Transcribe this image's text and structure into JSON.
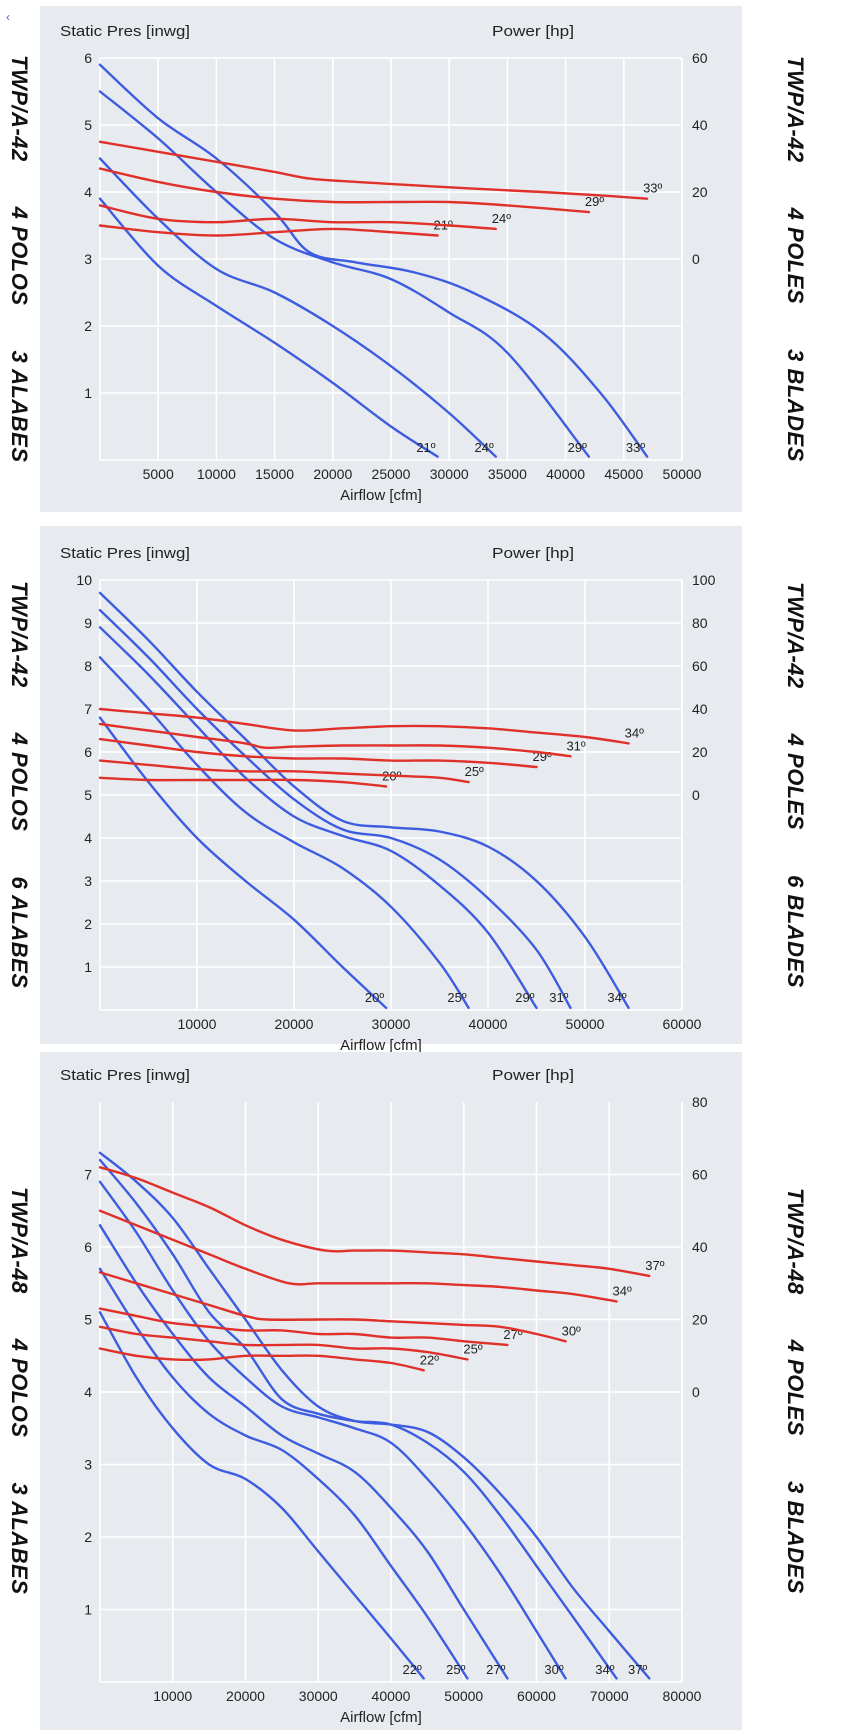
{
  "colors": {
    "panel_bg": "#e7ebef",
    "grid": "#ffffff",
    "pressure_curve": "#3d5ce0",
    "power_curve": "#e0302a",
    "text": "#222222"
  },
  "corner_mark": "‹",
  "chart_data": [
    {
      "type": "line",
      "left_label": "TWP/A-42   4 POLOS   3 ALABES",
      "right_label": "TWP/A-42   4 POLES   3 BLADES",
      "ylabel_left": "Static Pres [inwg]",
      "ylabel_right": "Power [hp]",
      "xlabel": "Airflow [cfm]",
      "xlim": [
        0,
        50000
      ],
      "xticks": [
        5000,
        10000,
        15000,
        20000,
        25000,
        30000,
        35000,
        40000,
        45000,
        50000
      ],
      "xtick_labels": [
        "5000",
        "10000",
        "15000",
        "20000",
        "25000",
        "30000",
        "35000",
        "40000",
        "45000",
        "50000"
      ],
      "ylim": [
        0,
        6
      ],
      "yticks": [
        1,
        2,
        3,
        4,
        5,
        6
      ],
      "ytick_labels": [
        "1",
        "2",
        "3",
        "4",
        "5",
        "6"
      ],
      "power_axis": {
        "ticks": [
          0,
          20,
          40,
          60
        ],
        "labels": [
          "0",
          "20",
          "40",
          "60"
        ],
        "ylim": [
          -60,
          60
        ]
      },
      "pressure_series": [
        {
          "label": "21º",
          "x": [
            0,
            5000,
            10000,
            15000,
            20000,
            25000,
            29000
          ],
          "y": [
            3.9,
            2.9,
            2.3,
            1.75,
            1.15,
            0.5,
            0.05
          ]
        },
        {
          "label": "24º",
          "x": [
            0,
            5000,
            10000,
            15000,
            20000,
            25000,
            30000,
            34000
          ],
          "y": [
            4.5,
            3.6,
            2.85,
            2.5,
            2.0,
            1.4,
            0.7,
            0.05
          ]
        },
        {
          "label": "29º",
          "x": [
            0,
            5000,
            10000,
            15000,
            20000,
            25000,
            30000,
            35000,
            42000
          ],
          "y": [
            5.5,
            4.8,
            4.0,
            3.3,
            2.95,
            2.7,
            2.2,
            1.6,
            0.05
          ]
        },
        {
          "label": "33º",
          "x": [
            0,
            5000,
            10000,
            15000,
            18000,
            22000,
            27000,
            32000,
            38000,
            43000,
            47000
          ],
          "y": [
            5.9,
            5.1,
            4.5,
            3.7,
            3.1,
            2.95,
            2.8,
            2.5,
            1.9,
            1.0,
            0.05
          ]
        }
      ],
      "power_series": [
        {
          "label": "21º",
          "x": [
            0,
            5000,
            10000,
            15000,
            20000,
            25000,
            29000
          ],
          "y": [
            10,
            8,
            7,
            8,
            9,
            8,
            7
          ]
        },
        {
          "label": "24º",
          "x": [
            0,
            5000,
            10000,
            15000,
            20000,
            25000,
            30000,
            34000
          ],
          "y": [
            16,
            12,
            11,
            12,
            11,
            11,
            10,
            9
          ]
        },
        {
          "label": "29º",
          "x": [
            0,
            5000,
            10000,
            15000,
            20000,
            25000,
            30000,
            35000,
            42000
          ],
          "y": [
            27,
            23,
            20,
            18,
            17,
            17,
            17,
            16,
            14
          ]
        },
        {
          "label": "33º",
          "x": [
            0,
            5000,
            10000,
            15000,
            18000,
            22000,
            27000,
            32000,
            38000,
            43000,
            47000
          ],
          "y": [
            35,
            32,
            29,
            26,
            24,
            23,
            22,
            21,
            20,
            19,
            18
          ]
        }
      ]
    },
    {
      "type": "line",
      "left_label": "TWP/A-42   4 POLOS   6 ALABES",
      "right_label": "TWP/A-42   4 POLES   6 BLADES",
      "ylabel_left": "Static Pres [inwg]",
      "ylabel_right": "Power [hp]",
      "xlabel": "Airflow [cfm]",
      "xlim": [
        0,
        60000
      ],
      "xticks": [
        10000,
        20000,
        30000,
        40000,
        50000,
        60000
      ],
      "xtick_labels": [
        "10000",
        "20000",
        "30000",
        "40000",
        "50000",
        "60000"
      ],
      "ylim": [
        0,
        10
      ],
      "yticks": [
        1,
        2,
        3,
        4,
        5,
        6,
        7,
        8,
        9,
        10
      ],
      "ytick_labels": [
        "1",
        "2",
        "3",
        "4",
        "5",
        "6",
        "7",
        "8",
        "9",
        "10"
      ],
      "power_axis": {
        "ticks": [
          0,
          20,
          40,
          60,
          80,
          100
        ],
        "labels": [
          "0",
          "20",
          "40",
          "60",
          "80",
          "100"
        ],
        "ylim": [
          -100,
          100
        ]
      },
      "pressure_series": [
        {
          "label": "20º",
          "x": [
            0,
            5000,
            10000,
            15000,
            20000,
            25000,
            29500
          ],
          "y": [
            6.8,
            5.3,
            4.0,
            3.0,
            2.1,
            1.0,
            0.05
          ]
        },
        {
          "label": "25º",
          "x": [
            0,
            5000,
            10000,
            15000,
            20000,
            25000,
            30000,
            35000,
            38000
          ],
          "y": [
            8.2,
            7.0,
            5.7,
            4.6,
            3.9,
            3.3,
            2.4,
            1.1,
            0.05
          ]
        },
        {
          "label": "29º",
          "x": [
            0,
            5000,
            10000,
            15000,
            20000,
            25000,
            30000,
            35000,
            40000,
            45000
          ],
          "y": [
            8.9,
            7.8,
            6.6,
            5.4,
            4.5,
            4.05,
            3.7,
            2.9,
            1.8,
            0.05
          ]
        },
        {
          "label": "31º",
          "x": [
            0,
            5000,
            10000,
            15000,
            20000,
            25000,
            30000,
            35000,
            40000,
            45000,
            48500
          ],
          "y": [
            9.3,
            8.2,
            7.0,
            5.9,
            4.9,
            4.2,
            4.0,
            3.5,
            2.6,
            1.4,
            0.05
          ]
        },
        {
          "label": "34º",
          "x": [
            0,
            5000,
            10000,
            15000,
            20000,
            25000,
            30000,
            35000,
            40000,
            45000,
            50000,
            54500
          ],
          "y": [
            9.7,
            8.6,
            7.4,
            6.3,
            5.2,
            4.4,
            4.25,
            4.15,
            3.8,
            3.0,
            1.7,
            0.05
          ]
        }
      ],
      "power_series": [
        {
          "label": "20º",
          "x": [
            0,
            5000,
            10000,
            15000,
            20000,
            25000,
            29500
          ],
          "y": [
            8,
            7,
            7,
            7,
            7,
            6,
            4
          ]
        },
        {
          "label": "25º",
          "x": [
            0,
            5000,
            10000,
            15000,
            20000,
            25000,
            30000,
            35000,
            38000
          ],
          "y": [
            16,
            14,
            12,
            11,
            11,
            10,
            9,
            8,
            6
          ]
        },
        {
          "label": "29º",
          "x": [
            0,
            5000,
            10000,
            15000,
            20000,
            25000,
            30000,
            35000,
            40000,
            45000
          ],
          "y": [
            26,
            23,
            20,
            18,
            17,
            17,
            16,
            16,
            15,
            13
          ]
        },
        {
          "label": "31º",
          "x": [
            0,
            5000,
            10000,
            15000,
            17000,
            20000,
            25000,
            30000,
            35000,
            40000,
            45000,
            48500
          ],
          "y": [
            33,
            30,
            27,
            24,
            22,
            22.5,
            23,
            23,
            23,
            22,
            20,
            18
          ]
        },
        {
          "label": "34º",
          "x": [
            0,
            5000,
            10000,
            15000,
            20000,
            25000,
            30000,
            35000,
            40000,
            45000,
            50000,
            54500
          ],
          "y": [
            40,
            38,
            36,
            33,
            30,
            31,
            32,
            32,
            31,
            29,
            27,
            24
          ]
        }
      ]
    },
    {
      "type": "line",
      "left_label": "TWP/A-48   4 POLOS   3 ALABES",
      "right_label": "TWP/A-48   4 POLES   3 BLADES",
      "ylabel_left": "Static Pres [inwg]",
      "ylabel_right": "Power [hp]",
      "xlabel": "Airflow [cfm]",
      "xlim": [
        0,
        80000
      ],
      "xticks": [
        10000,
        20000,
        30000,
        40000,
        50000,
        60000,
        70000,
        80000
      ],
      "xtick_labels": [
        "10000",
        "20000",
        "30000",
        "40000",
        "50000",
        "60000",
        "70000",
        "80000"
      ],
      "ylim": [
        0,
        8
      ],
      "yticks": [
        1,
        2,
        3,
        4,
        5,
        6,
        7
      ],
      "ytick_labels": [
        "1",
        "2",
        "3",
        "4",
        "5",
        "6",
        "7"
      ],
      "power_axis": {
        "ticks": [
          0,
          20,
          40,
          60,
          80
        ],
        "labels": [
          "0",
          "20",
          "40",
          "60",
          "80"
        ],
        "ylim": [
          -80,
          80
        ]
      },
      "pressure_series": [
        {
          "label": "22º",
          "x": [
            0,
            5000,
            10000,
            15000,
            20000,
            25000,
            30000,
            35000,
            40000,
            44500
          ],
          "y": [
            5.1,
            4.2,
            3.5,
            3.0,
            2.8,
            2.4,
            1.8,
            1.2,
            0.6,
            0.05
          ]
        },
        {
          "label": "25º",
          "x": [
            0,
            5000,
            10000,
            15000,
            20000,
            25000,
            30000,
            35000,
            40000,
            45000,
            50500
          ],
          "y": [
            5.7,
            4.9,
            4.2,
            3.7,
            3.4,
            3.2,
            2.8,
            2.3,
            1.6,
            0.9,
            0.05
          ]
        },
        {
          "label": "27º",
          "x": [
            0,
            5000,
            10000,
            15000,
            20000,
            25000,
            30000,
            35000,
            40000,
            45000,
            50000,
            56000
          ],
          "y": [
            6.3,
            5.5,
            4.8,
            4.2,
            3.8,
            3.4,
            3.15,
            2.9,
            2.4,
            1.8,
            1.0,
            0.05
          ]
        },
        {
          "label": "30º",
          "x": [
            0,
            5000,
            10000,
            15000,
            20000,
            25000,
            30000,
            35000,
            40000,
            45000,
            50000,
            55000,
            60000,
            64000
          ],
          "y": [
            6.9,
            6.2,
            5.4,
            4.7,
            4.2,
            3.8,
            3.65,
            3.5,
            3.3,
            2.8,
            2.2,
            1.5,
            0.7,
            0.05
          ]
        },
        {
          "label": "34º",
          "x": [
            0,
            5000,
            10000,
            15000,
            20000,
            25000,
            30000,
            35000,
            40000,
            45000,
            50000,
            55000,
            60000,
            65000,
            71000
          ],
          "y": [
            7.2,
            6.6,
            5.9,
            5.1,
            4.6,
            3.9,
            3.7,
            3.6,
            3.55,
            3.3,
            2.9,
            2.3,
            1.6,
            0.9,
            0.05
          ]
        },
        {
          "label": "37º",
          "x": [
            0,
            5000,
            10000,
            15000,
            20000,
            25000,
            30000,
            35000,
            40000,
            45000,
            50000,
            55000,
            60000,
            65000,
            70000,
            75500
          ],
          "y": [
            7.3,
            6.9,
            6.4,
            5.7,
            5.0,
            4.3,
            3.8,
            3.6,
            3.55,
            3.45,
            3.1,
            2.6,
            2.0,
            1.3,
            0.7,
            0.05
          ]
        }
      ],
      "power_series": [
        {
          "label": "22º",
          "x": [
            0,
            5000,
            10000,
            15000,
            20000,
            25000,
            30000,
            35000,
            40000,
            44500
          ],
          "y": [
            12,
            10,
            9,
            9,
            10,
            10,
            10,
            9,
            8,
            6
          ]
        },
        {
          "label": "25º",
          "x": [
            0,
            5000,
            10000,
            15000,
            20000,
            25000,
            30000,
            35000,
            40000,
            45000,
            50500
          ],
          "y": [
            18,
            16,
            15,
            14,
            13,
            13,
            13,
            12,
            12,
            11,
            9
          ]
        },
        {
          "label": "27º",
          "x": [
            0,
            5000,
            10000,
            15000,
            20000,
            25000,
            30000,
            35000,
            40000,
            45000,
            50000,
            56000
          ],
          "y": [
            23,
            21,
            19,
            18,
            17,
            17,
            16,
            16,
            15,
            15,
            14,
            13
          ]
        },
        {
          "label": "30º",
          "x": [
            0,
            5000,
            10000,
            15000,
            20000,
            23000,
            30000,
            35000,
            40000,
            45000,
            50000,
            55000,
            60000,
            64000
          ],
          "y": [
            33,
            30,
            27,
            24,
            21,
            20,
            20,
            20,
            19.5,
            19,
            18.5,
            18,
            16,
            14
          ]
        },
        {
          "label": "34º",
          "x": [
            0,
            5000,
            10000,
            15000,
            20000,
            26000,
            30000,
            35000,
            40000,
            45000,
            50000,
            55000,
            60000,
            65000,
            71000
          ],
          "y": [
            50,
            46,
            42,
            38,
            34,
            30,
            30,
            30,
            30,
            30,
            29.5,
            29,
            28,
            27,
            25
          ]
        },
        {
          "label": "37º",
          "x": [
            0,
            5000,
            10000,
            15000,
            20000,
            25000,
            31000,
            35000,
            40000,
            45000,
            50000,
            55000,
            60000,
            65000,
            70000,
            75500
          ],
          "y": [
            62,
            59,
            55,
            51,
            46,
            42,
            39,
            39,
            39,
            38.5,
            38,
            37,
            36,
            35,
            34,
            32
          ]
        }
      ]
    }
  ]
}
